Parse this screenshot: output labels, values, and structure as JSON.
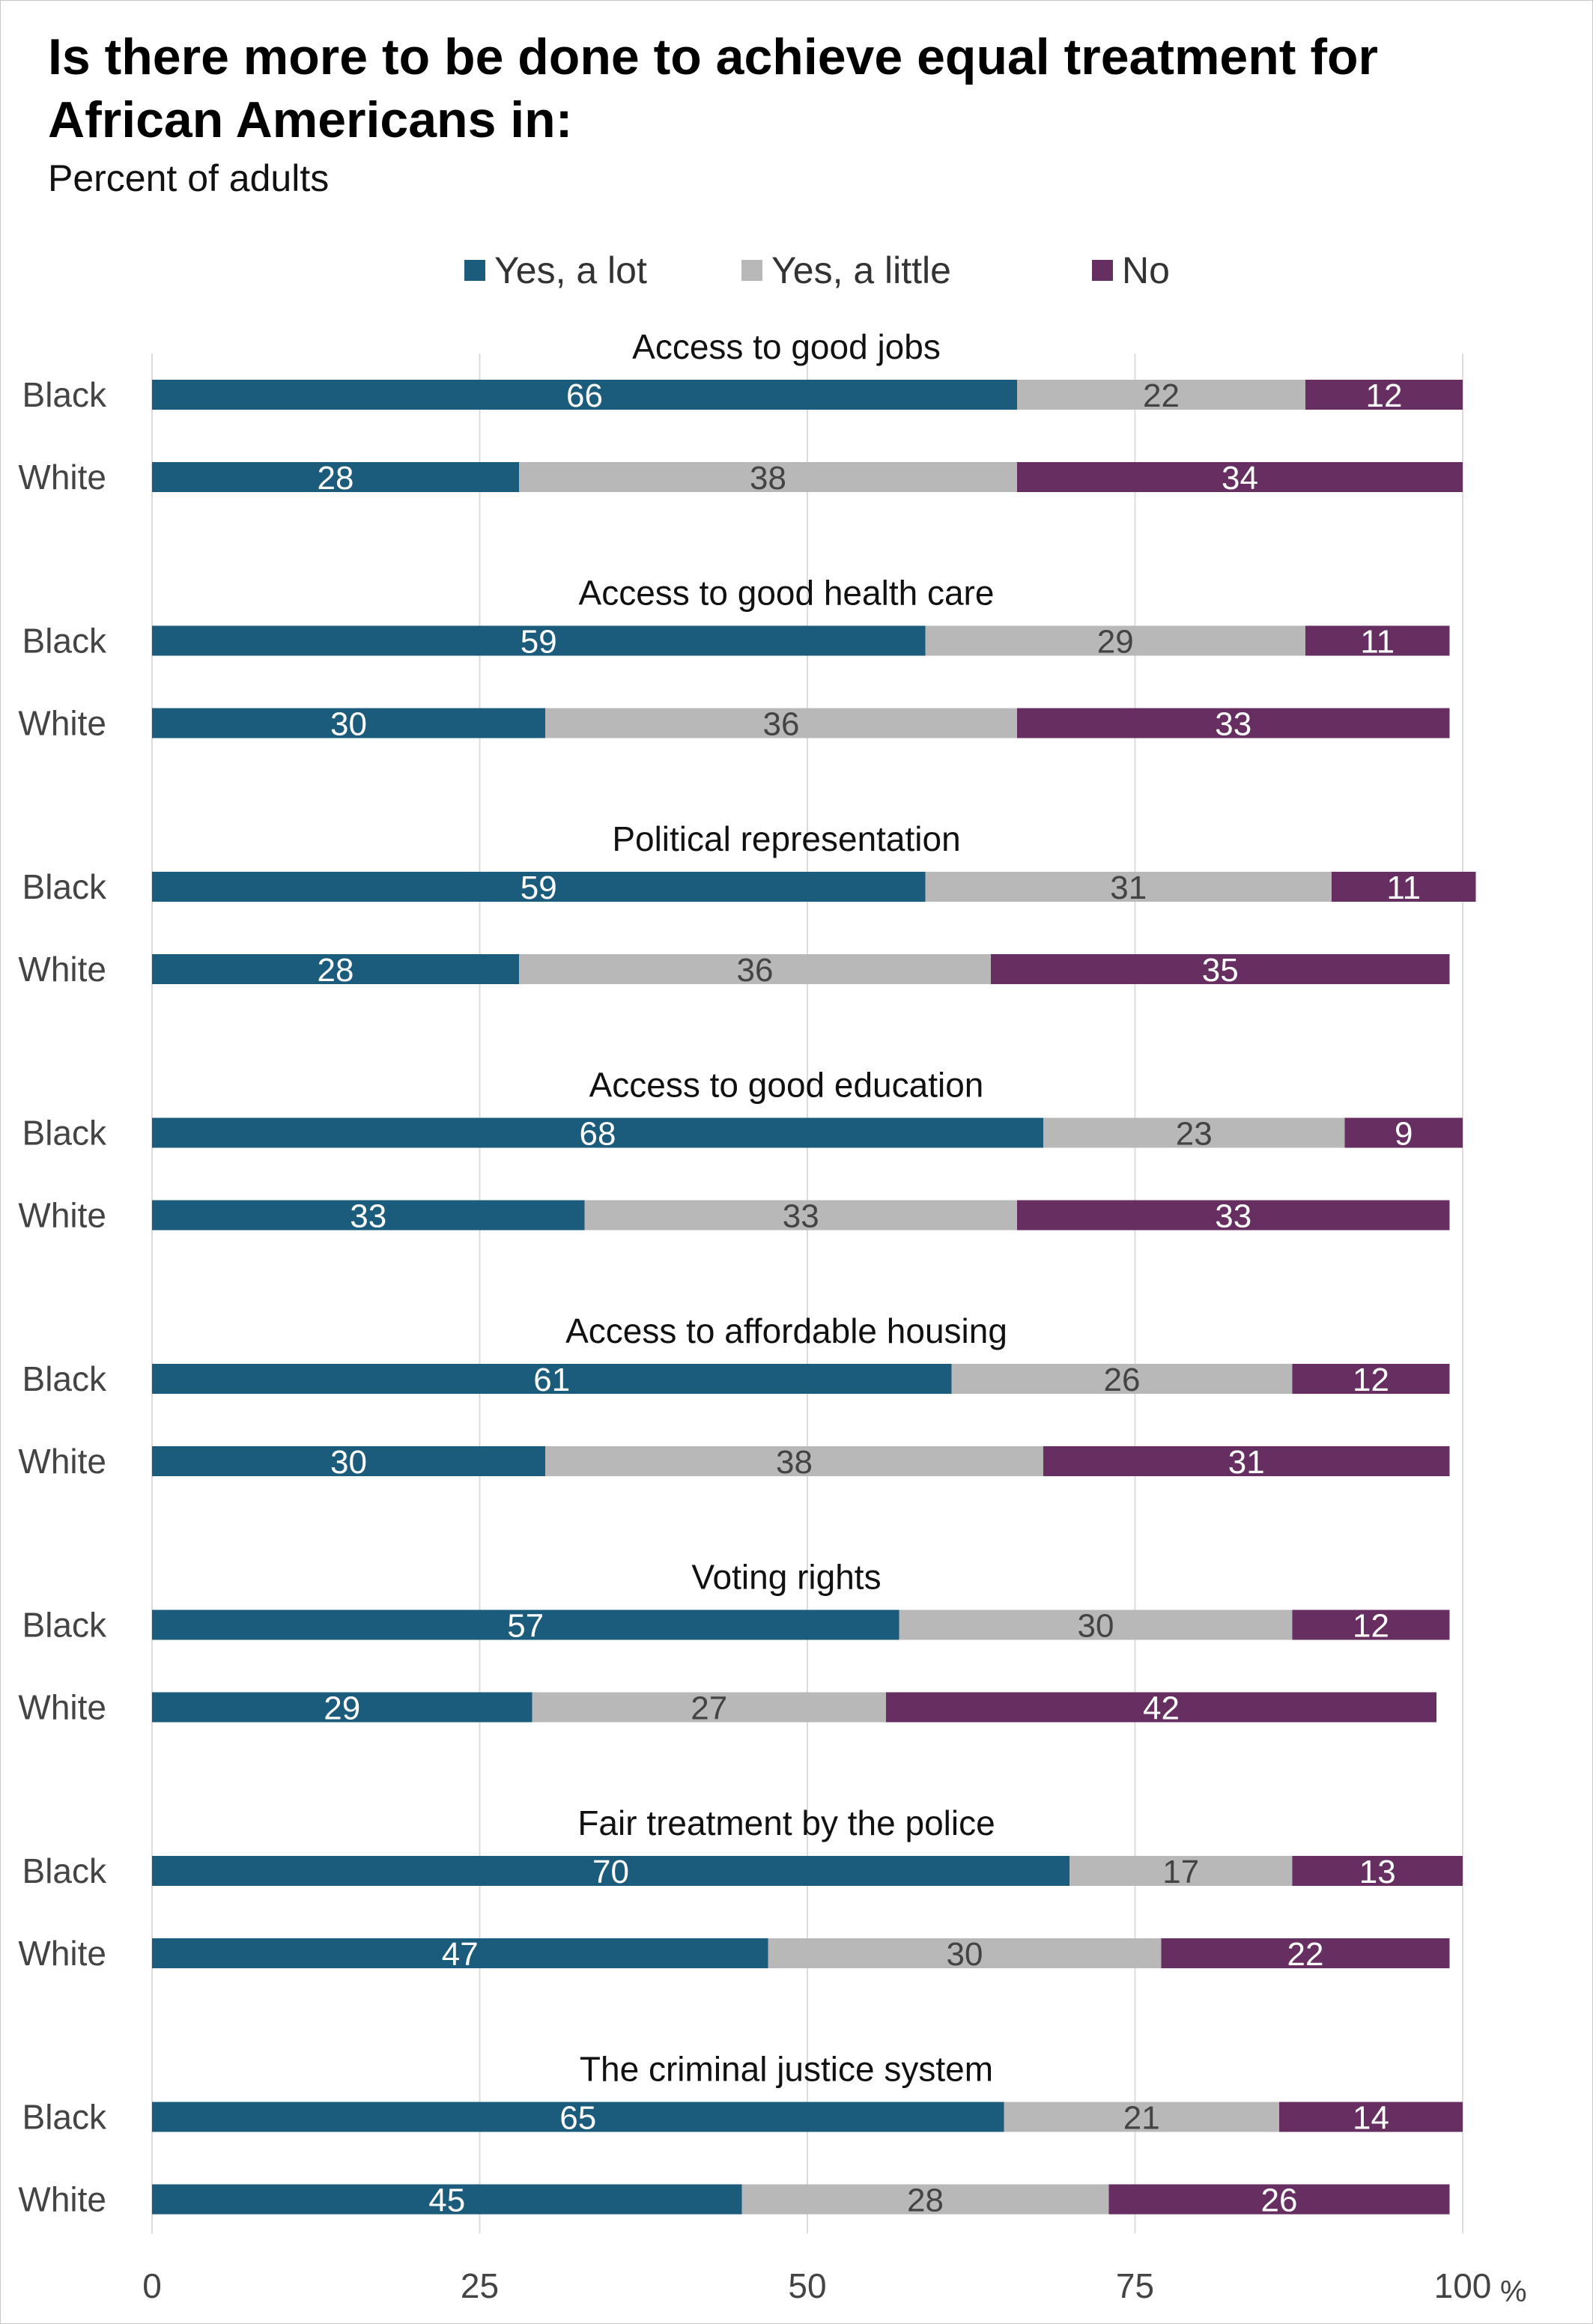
{
  "title": "Is there more to be done to achieve equal treatment for African Americans in:",
  "subtitle": "Percent of adults",
  "colors": {
    "yes_a_lot": "#1b5c7c",
    "yes_a_little": "#b8b8b8",
    "no": "#662e61",
    "grid": "#dcdcdc"
  },
  "legend": [
    {
      "label": "Yes, a lot",
      "color": "#1b5c7c"
    },
    {
      "label": "Yes, a little",
      "color": "#b8b8b8"
    },
    {
      "label": "No",
      "color": "#662e61"
    }
  ],
  "chart_data": {
    "type": "bar",
    "orientation": "horizontal",
    "stacked": true,
    "xlim": [
      0,
      100
    ],
    "x_ticks": [
      "0",
      "25",
      "50",
      "75",
      "100"
    ],
    "x_unit": "%",
    "grid": true,
    "legend_position": "top",
    "series_names": [
      "Yes, a lot",
      "Yes, a little",
      "No"
    ],
    "groups": [
      {
        "label": "Access to good jobs",
        "rows": [
          {
            "label": "Black",
            "values": [
              66,
              22,
              12
            ]
          },
          {
            "label": "White",
            "values": [
              28,
              38,
              34
            ]
          }
        ]
      },
      {
        "label": "Access to good health care",
        "rows": [
          {
            "label": "Black",
            "values": [
              59,
              29,
              11
            ]
          },
          {
            "label": "White",
            "values": [
              30,
              36,
              33
            ]
          }
        ]
      },
      {
        "label": "Political representation",
        "rows": [
          {
            "label": "Black",
            "values": [
              59,
              31,
              11
            ]
          },
          {
            "label": "White",
            "values": [
              28,
              36,
              35
            ]
          }
        ]
      },
      {
        "label": "Access to good education",
        "rows": [
          {
            "label": "Black",
            "values": [
              68,
              23,
              9
            ]
          },
          {
            "label": "White",
            "values": [
              33,
              33,
              33
            ]
          }
        ]
      },
      {
        "label": "Access to affordable housing",
        "rows": [
          {
            "label": "Black",
            "values": [
              61,
              26,
              12
            ]
          },
          {
            "label": "White",
            "values": [
              30,
              38,
              31
            ]
          }
        ]
      },
      {
        "label": "Voting rights",
        "rows": [
          {
            "label": "Black",
            "values": [
              57,
              30,
              12
            ]
          },
          {
            "label": "White",
            "values": [
              29,
              27,
              42
            ]
          }
        ]
      },
      {
        "label": "Fair treatment by the police",
        "rows": [
          {
            "label": "Black",
            "values": [
              70,
              17,
              13
            ]
          },
          {
            "label": "White",
            "values": [
              47,
              30,
              22
            ]
          }
        ]
      },
      {
        "label": "The criminal justice system",
        "rows": [
          {
            "label": "Black",
            "values": [
              65,
              21,
              14
            ]
          },
          {
            "label": "White",
            "values": [
              45,
              28,
              26
            ]
          }
        ]
      }
    ]
  }
}
